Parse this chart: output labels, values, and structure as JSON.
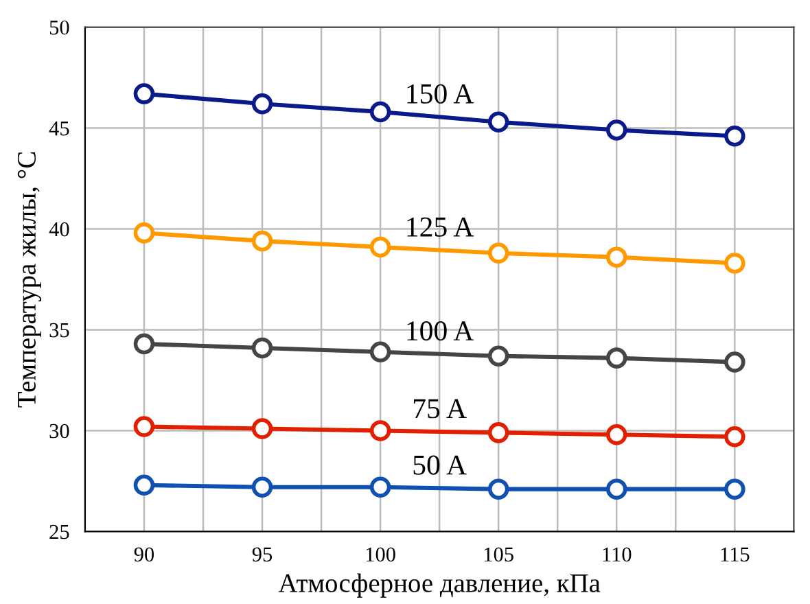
{
  "chart_data": {
    "type": "line",
    "xlabel": "Атмосферное давление, кПа",
    "ylabel": "Температура жилы, °C",
    "x": [
      90,
      95,
      100,
      105,
      110,
      115
    ],
    "xlim": [
      87.5,
      117.5
    ],
    "xticks": [
      90,
      {
        "value": 92.5,
        "label": null
      },
      95,
      {
        "value": 97.5,
        "label": null
      },
      100,
      {
        "value": 102.5,
        "label": null
      },
      105,
      {
        "value": 107.5,
        "label": null
      },
      110,
      {
        "value": 112.5,
        "label": null
      },
      115
    ],
    "ylim": [
      25,
      50
    ],
    "yticks": [
      25,
      30,
      35,
      40,
      45,
      50
    ],
    "grid": true,
    "marker": "circle",
    "line_style": "solid",
    "legend": false,
    "series": [
      {
        "name": "150 A",
        "color": "#0a1a8a",
        "values": [
          46.7,
          46.2,
          45.8,
          45.3,
          44.9,
          44.6
        ]
      },
      {
        "name": "125 A",
        "color": "#ff9900",
        "values": [
          39.8,
          39.4,
          39.1,
          38.8,
          38.6,
          38.3
        ]
      },
      {
        "name": "100 A",
        "color": "#454545",
        "values": [
          34.3,
          34.1,
          33.9,
          33.7,
          33.6,
          33.4
        ]
      },
      {
        "name": "75 A",
        "color": "#e02000",
        "values": [
          30.2,
          30.1,
          30.0,
          29.9,
          29.8,
          29.7
        ]
      },
      {
        "name": "50 A",
        "color": "#1050b0",
        "values": [
          27.3,
          27.2,
          27.2,
          27.1,
          27.1,
          27.1
        ]
      }
    ]
  }
}
